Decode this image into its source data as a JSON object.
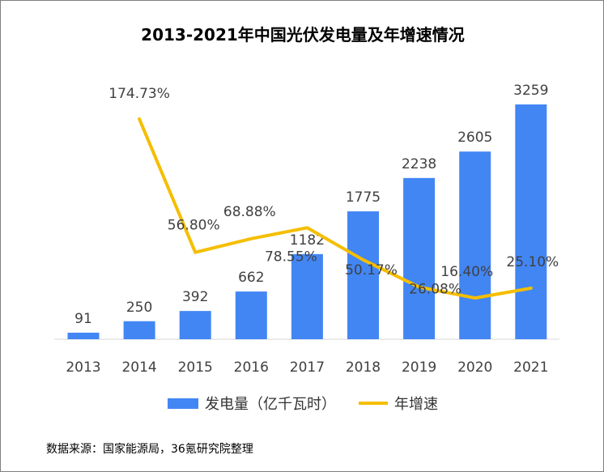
{
  "chart_data": {
    "type": "bar",
    "title": "2013-2021年中国光伏发电量及年增速情况",
    "categories": [
      "2013",
      "2014",
      "2015",
      "2016",
      "2017",
      "2018",
      "2019",
      "2020",
      "2021"
    ],
    "series": [
      {
        "name": "发电量（亿千瓦时）",
        "type": "bar",
        "color": "#4286f4",
        "values": [
          91,
          250,
          392,
          662,
          1182,
          1775,
          2238,
          2605,
          3259
        ],
        "labels": [
          "91",
          "250",
          "392",
          "662",
          "1182",
          "1775",
          "2238",
          "2605",
          "3259"
        ]
      },
      {
        "name": "年增速",
        "type": "line",
        "color": "#f5be00",
        "values": [
          null,
          174.73,
          56.8,
          68.88,
          78.55,
          50.17,
          26.08,
          16.4,
          25.1
        ],
        "labels": [
          "",
          "174.73%",
          "56.80%",
          "68.88%",
          "78.55%",
          "50.17%",
          "26.08%",
          "16.40%",
          "25.10%"
        ]
      }
    ],
    "legend": "bottom",
    "grid": false
  },
  "source": "数据来源：国家能源局，36氪研究院整理"
}
